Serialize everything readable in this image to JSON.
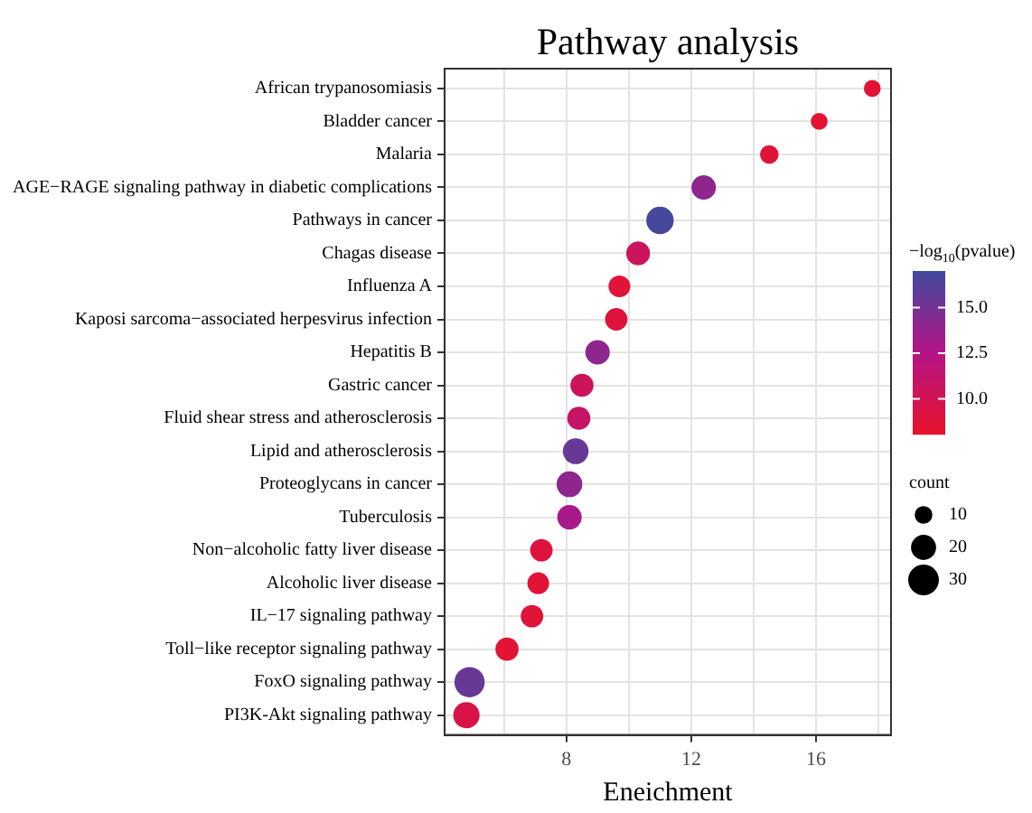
{
  "chart_data": {
    "type": "bubble",
    "title": "Pathway analysis",
    "xlabel": "Eneichment",
    "clabel": "−log$_{10}$(pvalue)",
    "legend_title": "count",
    "orientation": "horizontal",
    "categories": [
      "African trypanosomiasis",
      "Bladder cancer",
      "Malaria",
      "AGE−RAGE signaling pathway in diabetic complications",
      "Pathways in cancer",
      "Chagas disease",
      "Influenza A",
      "Kaposi sarcoma−associated herpesvirus infection",
      "Hepatitis B",
      "Gastric cancer",
      "Fluid shear stress and atherosclerosis",
      "Lipid and atherosclerosis",
      "Proteoglycans in cancer",
      "Tuberculosis",
      "Non−alcoholic fatty liver disease",
      "Alcoholic liver disease",
      "IL−17 signaling pathway",
      "Toll−like receptor signaling pathway",
      "FoxO signaling pathway",
      "PI3K-Akt signaling pathway"
    ],
    "values": [
      17.8,
      16.1,
      14.5,
      12.4,
      11.0,
      10.3,
      9.7,
      9.6,
      9.0,
      8.5,
      8.4,
      8.3,
      8.1,
      8.1,
      7.2,
      7.1,
      6.9,
      6.1,
      4.9,
      4.8
    ],
    "sizes": [
      9,
      9,
      11,
      19,
      24,
      18,
      15,
      16,
      19,
      17,
      17,
      21,
      21,
      19,
      16,
      15,
      16,
      17,
      29,
      22
    ],
    "cvalues": [
      8.6,
      8.6,
      8.8,
      14.0,
      16.8,
      10.5,
      8.8,
      9.0,
      14.0,
      10.5,
      11.0,
      15.5,
      14.0,
      13.0,
      9.0,
      8.8,
      8.8,
      8.6,
      15.5,
      9.5
    ],
    "size_legend": [
      10,
      20,
      30
    ],
    "clim": [
      8.1,
      17.0
    ],
    "cticks": [
      {
        "value": 10,
        "label": "10.0"
      },
      {
        "value": 12.5,
        "label": "12.5"
      },
      {
        "value": 15,
        "label": "15.0"
      }
    ],
    "xlim": [
      4.1,
      18.4
    ],
    "xticks": [
      {
        "value": 6,
        "label": null
      },
      8,
      {
        "value": 10,
        "label": null
      },
      12,
      {
        "value": 14,
        "label": null
      },
      16,
      {
        "value": 18,
        "label": null
      }
    ],
    "grid": true
  }
}
